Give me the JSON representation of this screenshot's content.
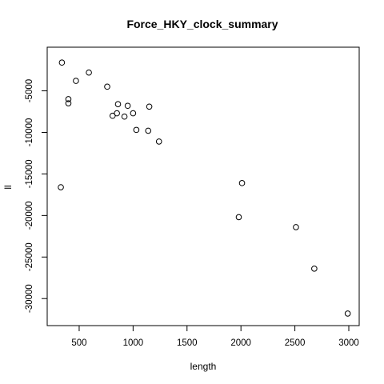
{
  "chart_data": {
    "type": "scatter",
    "title": "Force_HKY_clock_summary",
    "xlabel": "length",
    "ylabel": "ll",
    "xlim": [
      300,
      3000
    ],
    "ylim": [
      -32000,
      -1000
    ],
    "x_ticks": [
      500,
      1000,
      1500,
      2000,
      2500,
      3000
    ],
    "y_ticks": [
      -5000,
      -10000,
      -15000,
      -20000,
      -25000,
      -30000
    ],
    "grid": false,
    "points": [
      {
        "x": 340,
        "y": -1600
      },
      {
        "x": 590,
        "y": -2800
      },
      {
        "x": 470,
        "y": -3800
      },
      {
        "x": 760,
        "y": -4500
      },
      {
        "x": 400,
        "y": -6000
      },
      {
        "x": 400,
        "y": -6500
      },
      {
        "x": 860,
        "y": -6600
      },
      {
        "x": 950,
        "y": -6800
      },
      {
        "x": 1150,
        "y": -6900
      },
      {
        "x": 850,
        "y": -7700
      },
      {
        "x": 1000,
        "y": -7700
      },
      {
        "x": 810,
        "y": -8000
      },
      {
        "x": 920,
        "y": -8100
      },
      {
        "x": 1030,
        "y": -9700
      },
      {
        "x": 1140,
        "y": -9800
      },
      {
        "x": 1240,
        "y": -11100
      },
      {
        "x": 330,
        "y": -16600
      },
      {
        "x": 2010,
        "y": -16100
      },
      {
        "x": 1980,
        "y": -20200
      },
      {
        "x": 2510,
        "y": -21400
      },
      {
        "x": 2680,
        "y": -26400
      },
      {
        "x": 2990,
        "y": -31800
      }
    ]
  }
}
